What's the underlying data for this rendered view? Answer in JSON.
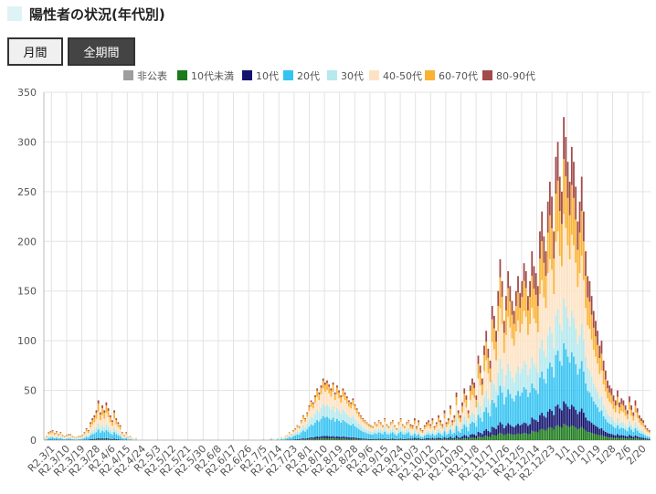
{
  "page": {
    "title": "陽性者の状況(年代別)"
  },
  "buttons": {
    "monthly": "月間",
    "all_period": "全期間"
  },
  "colors": {
    "non_public": "#9e9e9e",
    "under10": "#1b7a1b",
    "10s": "#14146e",
    "20s": "#35c3f2",
    "30s": "#b4e9ee",
    "40_50s": "#fde3c4",
    "60_70s": "#f9b233",
    "80_90s": "#a34a4a",
    "grid": "#e3e3e3"
  },
  "chart_data": {
    "type": "bar",
    "stacked": true,
    "title": "",
    "xlabel": "",
    "ylabel": "",
    "ylim": [
      0,
      350
    ],
    "yticks": [
      0,
      50,
      100,
      150,
      200,
      250,
      300,
      350
    ],
    "grid": true,
    "legend_position": "top",
    "x_tick_labels": [
      "R2.3/1",
      "R2.3/10",
      "R2.3/19",
      "R2.3/28",
      "R2.4/6",
      "R2.4/15",
      "R2.4/24",
      "R2.5/3",
      "R2.5/12",
      "R2.5/21",
      "R2.5/30",
      "R2.6/8",
      "R2.6/17",
      "R2.6/26",
      "R2.7/5",
      "R2.7/14",
      "R2.7/23",
      "R2.8/1",
      "R2.8/10",
      "R2.8/19",
      "R2.8/28",
      "R2.9/6",
      "R2.9/15",
      "R2.9/24",
      "R2.10/3",
      "R2.10/12",
      "R2.10/21",
      "R2.10/30",
      "R2.11/8",
      "R2.11/17",
      "R2.11/26",
      "R2.12/5",
      "R2.12/14",
      "R2.12/23",
      "1/1",
      "1/10",
      "1/19",
      "1/28",
      "2/6",
      "2/20"
    ],
    "series_keys": [
      "non_public",
      "under10",
      "10s",
      "20s",
      "30s",
      "40_50s",
      "60_70s",
      "80_90s"
    ],
    "series_names": [
      "非公表",
      "10代未満",
      "10代",
      "20代",
      "30代",
      "40-50代",
      "60-70代",
      "80-90代"
    ],
    "totals": [
      2,
      4,
      8,
      9,
      10,
      7,
      9,
      6,
      8,
      5,
      4,
      5,
      6,
      6,
      4,
      3,
      3,
      4,
      4,
      5,
      8,
      12,
      10,
      18,
      22,
      25,
      30,
      40,
      28,
      35,
      30,
      38,
      32,
      25,
      20,
      30,
      22,
      18,
      15,
      8,
      5,
      8,
      3,
      4,
      2,
      1,
      2,
      0,
      0,
      0,
      0,
      0,
      0,
      0,
      0,
      0,
      0,
      0,
      0,
      0,
      0,
      0,
      0,
      0,
      0,
      0,
      0,
      0,
      0,
      0,
      0,
      0,
      0,
      0,
      0,
      0,
      0,
      0,
      0,
      0,
      0,
      0,
      0,
      0,
      0,
      0,
      0,
      0,
      0,
      0,
      0,
      0,
      0,
      0,
      0,
      0,
      0,
      0,
      0,
      0,
      0,
      0,
      0,
      0,
      0,
      0,
      0,
      0,
      0,
      0,
      1,
      0,
      0,
      1,
      2,
      1,
      0,
      2,
      1,
      3,
      2,
      4,
      5,
      8,
      6,
      10,
      12,
      15,
      14,
      20,
      25,
      22,
      28,
      35,
      40,
      38,
      45,
      52,
      48,
      55,
      62,
      58,
      60,
      56,
      52,
      58,
      48,
      55,
      50,
      45,
      52,
      48,
      44,
      40,
      38,
      42,
      36,
      32,
      28,
      25,
      22,
      20,
      18,
      16,
      15,
      14,
      18,
      16,
      20,
      18,
      15,
      22,
      16,
      14,
      18,
      20,
      15,
      12,
      18,
      22,
      16,
      14,
      18,
      20,
      16,
      15,
      22,
      14,
      20,
      12,
      10,
      15,
      18,
      20,
      16,
      22,
      14,
      18,
      25,
      20,
      16,
      30,
      18,
      22,
      35,
      20,
      25,
      48,
      30,
      25,
      38,
      52,
      45,
      30,
      55,
      62,
      58,
      45,
      85,
      75,
      62,
      95,
      110,
      92,
      80,
      135,
      125,
      110,
      150,
      182,
      160,
      120,
      145,
      170,
      155,
      140,
      130,
      150,
      165,
      148,
      160,
      178,
      170,
      145,
      160,
      190,
      175,
      168,
      155,
      210,
      230,
      205,
      190,
      240,
      260,
      245,
      210,
      285,
      300,
      265,
      250,
      325,
      305,
      280,
      260,
      295,
      280,
      255,
      220,
      240,
      265,
      230,
      190,
      165,
      160,
      145,
      130,
      120,
      110,
      95,
      100,
      80,
      70,
      60,
      55,
      52,
      45,
      40,
      50,
      38,
      42,
      40,
      35,
      30,
      44,
      35,
      28,
      40,
      32,
      25,
      22,
      20,
      15,
      12,
      10
    ],
    "x_count_note": "daily values from R2.3/1 to 2/20"
  }
}
